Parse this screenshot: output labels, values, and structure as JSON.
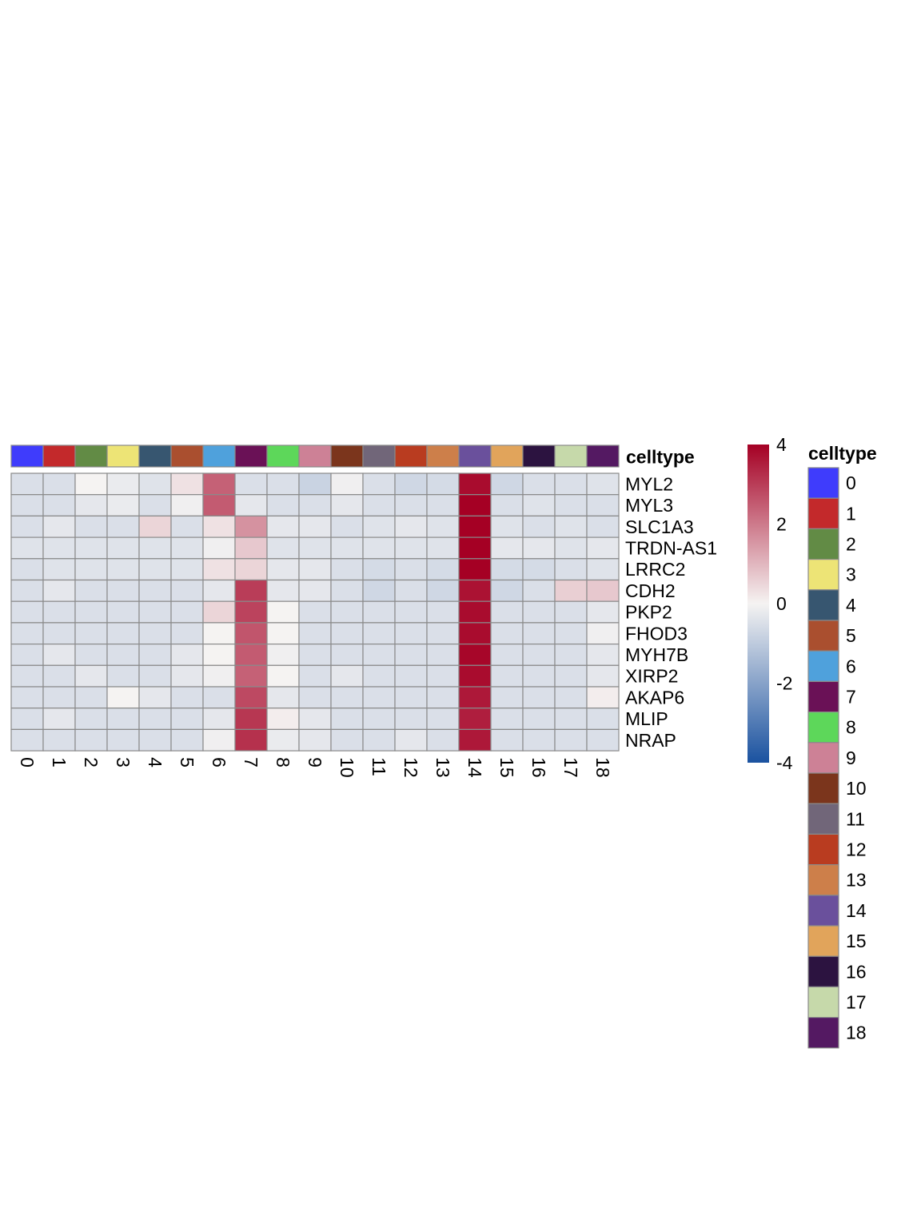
{
  "chart_data": {
    "type": "heatmap",
    "annotation_label": "celltype",
    "columns": [
      "0",
      "1",
      "2",
      "3",
      "4",
      "5",
      "6",
      "7",
      "8",
      "9",
      "10",
      "11",
      "12",
      "13",
      "14",
      "15",
      "16",
      "17",
      "18"
    ],
    "rows": [
      "MYL2",
      "MYL3",
      "SLC1A3",
      "TRDN-AS1",
      "LRRC2",
      "CDH2",
      "PKP2",
      "FHOD3",
      "MYH7B",
      "XIRP2",
      "AKAP6",
      "MLIP",
      "NRAP"
    ],
    "values": [
      [
        -0.5,
        -0.5,
        0.0,
        -0.2,
        -0.4,
        0.3,
        2.4,
        -0.5,
        -0.5,
        -0.8,
        -0.1,
        -0.5,
        -0.7,
        -0.6,
        3.8,
        -0.7,
        -0.5,
        -0.5,
        -0.4
      ],
      [
        -0.5,
        -0.5,
        -0.3,
        -0.2,
        -0.5,
        -0.1,
        2.5,
        -0.3,
        -0.5,
        -0.5,
        -0.3,
        -0.5,
        -0.5,
        -0.5,
        4.0,
        -0.5,
        -0.4,
        -0.5,
        -0.5
      ],
      [
        -0.5,
        -0.3,
        -0.5,
        -0.5,
        0.5,
        -0.5,
        0.3,
        1.6,
        -0.3,
        -0.3,
        -0.5,
        -0.4,
        -0.3,
        -0.4,
        4.1,
        -0.4,
        -0.5,
        -0.4,
        -0.5
      ],
      [
        -0.4,
        -0.4,
        -0.4,
        -0.4,
        -0.4,
        -0.4,
        -0.1,
        0.7,
        -0.4,
        -0.4,
        -0.4,
        -0.4,
        -0.4,
        -0.4,
        4.3,
        -0.3,
        -0.3,
        -0.4,
        -0.3
      ],
      [
        -0.5,
        -0.4,
        -0.4,
        -0.4,
        -0.4,
        -0.4,
        0.3,
        0.5,
        -0.3,
        -0.3,
        -0.5,
        -0.6,
        -0.5,
        -0.6,
        4.3,
        -0.6,
        -0.6,
        -0.5,
        -0.4
      ],
      [
        -0.5,
        -0.3,
        -0.5,
        -0.5,
        -0.5,
        -0.5,
        -0.3,
        3.0,
        -0.3,
        -0.3,
        -0.5,
        -0.7,
        -0.5,
        -0.7,
        3.7,
        -0.7,
        -0.5,
        0.6,
        0.7
      ],
      [
        -0.5,
        -0.5,
        -0.5,
        -0.5,
        -0.5,
        -0.5,
        0.5,
        2.9,
        0.0,
        -0.5,
        -0.5,
        -0.5,
        -0.5,
        -0.5,
        3.8,
        -0.5,
        -0.5,
        -0.5,
        -0.3
      ],
      [
        -0.5,
        -0.5,
        -0.5,
        -0.5,
        -0.5,
        -0.5,
        0.0,
        2.6,
        0.0,
        -0.5,
        -0.5,
        -0.5,
        -0.5,
        -0.5,
        3.8,
        -0.5,
        -0.5,
        -0.5,
        -0.1
      ],
      [
        -0.5,
        -0.3,
        -0.5,
        -0.5,
        -0.5,
        -0.3,
        0.0,
        2.5,
        -0.1,
        -0.5,
        -0.5,
        -0.5,
        -0.5,
        -0.5,
        3.9,
        -0.5,
        -0.5,
        -0.5,
        -0.3
      ],
      [
        -0.5,
        -0.5,
        -0.3,
        -0.5,
        -0.5,
        -0.3,
        -0.1,
        2.4,
        0.0,
        -0.5,
        -0.3,
        -0.5,
        -0.5,
        -0.5,
        3.8,
        -0.5,
        -0.5,
        -0.5,
        -0.3
      ],
      [
        -0.5,
        -0.5,
        -0.5,
        0.0,
        -0.3,
        -0.5,
        -0.5,
        2.8,
        -0.3,
        -0.5,
        -0.5,
        -0.5,
        -0.5,
        -0.5,
        3.6,
        -0.5,
        -0.5,
        -0.5,
        0.1
      ],
      [
        -0.5,
        -0.3,
        -0.5,
        -0.5,
        -0.5,
        -0.5,
        -0.3,
        3.1,
        0.1,
        -0.3,
        -0.5,
        -0.5,
        -0.5,
        -0.5,
        3.5,
        -0.5,
        -0.5,
        -0.5,
        -0.5
      ],
      [
        -0.5,
        -0.5,
        -0.5,
        -0.5,
        -0.5,
        -0.5,
        -0.1,
        3.2,
        -0.2,
        -0.3,
        -0.5,
        -0.5,
        -0.3,
        -0.5,
        3.6,
        -0.5,
        -0.5,
        -0.5,
        -0.5
      ]
    ],
    "colorbar": {
      "range": [
        -4,
        4
      ],
      "ticks": [
        "4",
        "2",
        "0",
        "-2",
        "-4"
      ]
    },
    "colorscale": {
      "low": "#1a52a0",
      "mid": "#f5f3f2",
      "high": "#a50024"
    },
    "celltype_colors": [
      "#3f3cfc",
      "#c3292b",
      "#628b45",
      "#ede476",
      "#375670",
      "#aa4f2f",
      "#4fa1dc",
      "#6a1156",
      "#5dd75a",
      "#cd8196",
      "#7b351c",
      "#716679",
      "#b93c20",
      "#cd7f4a",
      "#6a509c",
      "#e1a45b",
      "#2c1340",
      "#c6d9aa",
      "#541962"
    ],
    "legend": {
      "title": "celltype",
      "labels": [
        "0",
        "1",
        "2",
        "3",
        "4",
        "5",
        "6",
        "7",
        "8",
        "9",
        "10",
        "11",
        "12",
        "13",
        "14",
        "15",
        "16",
        "17",
        "18"
      ]
    },
    "grid": true,
    "legend_position": "right"
  }
}
